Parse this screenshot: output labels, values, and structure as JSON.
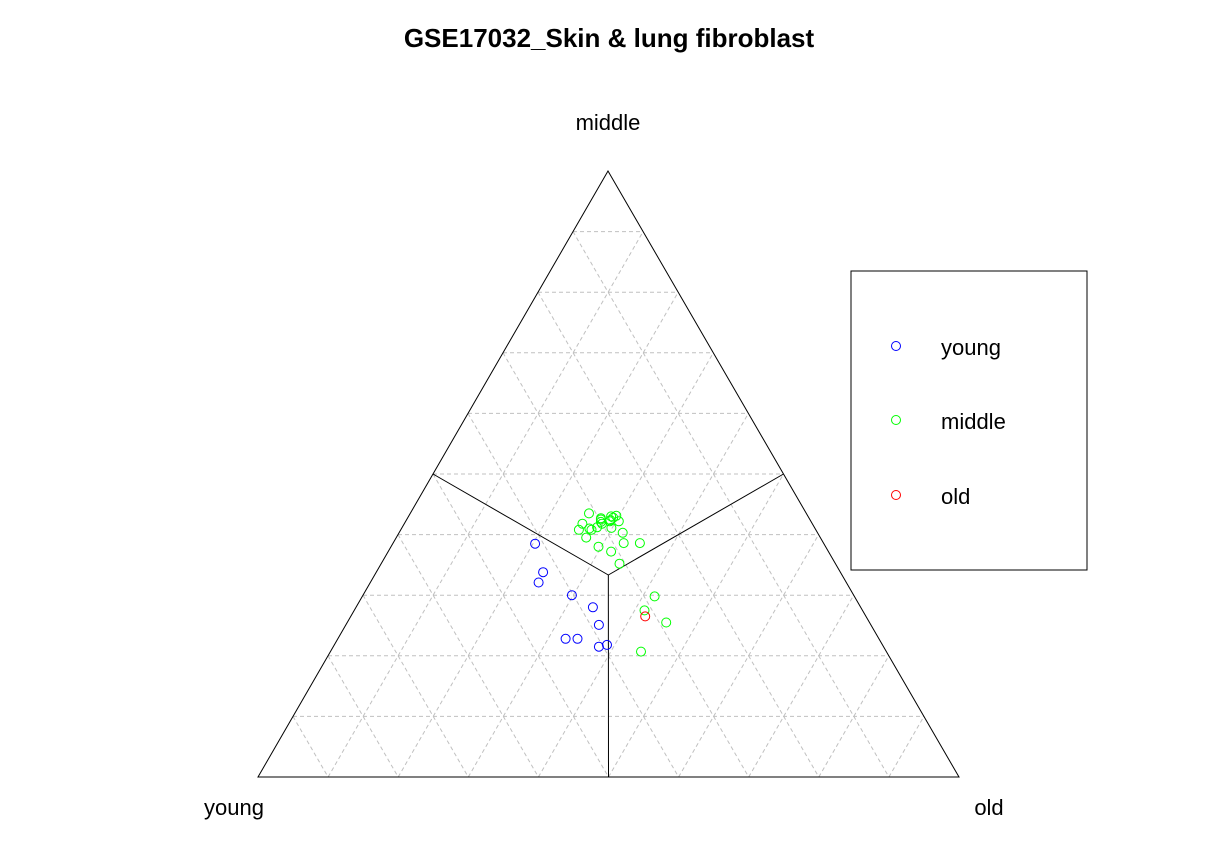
{
  "chart_data": {
    "type": "scatter",
    "subtype": "ternary",
    "title": "GSE17032_Skin & lung fibroblast",
    "vertex_labels": {
      "top": "middle",
      "left": "young",
      "right": "old"
    },
    "grid": true,
    "grid_divisions": 10,
    "legend_position": "right",
    "legend": [
      {
        "label": "young",
        "color": "#0000ff"
      },
      {
        "label": "middle",
        "color": "#00ff00"
      },
      {
        "label": "old",
        "color": "#ff0000"
      }
    ],
    "series": [
      {
        "name": "young",
        "color": "#0000ff",
        "points": [
          {
            "young": 0.412,
            "middle": 0.385,
            "old": 0.203
          },
          {
            "young": 0.402,
            "middle": 0.3,
            "old": 0.298
          },
          {
            "young": 0.424,
            "middle": 0.338,
            "old": 0.238
          },
          {
            "young": 0.439,
            "middle": 0.321,
            "old": 0.24
          },
          {
            "young": 0.382,
            "middle": 0.28,
            "old": 0.338
          },
          {
            "young": 0.388,
            "middle": 0.251,
            "old": 0.361
          },
          {
            "young": 0.43,
            "middle": 0.228,
            "old": 0.342
          },
          {
            "young": 0.447,
            "middle": 0.228,
            "old": 0.325
          },
          {
            "young": 0.406,
            "middle": 0.215,
            "old": 0.379
          },
          {
            "young": 0.393,
            "middle": 0.218,
            "old": 0.389
          }
        ]
      },
      {
        "name": "middle",
        "color": "#00ff00",
        "points": [
          {
            "young": 0.31,
            "middle": 0.435,
            "old": 0.255
          },
          {
            "young": 0.298,
            "middle": 0.425,
            "old": 0.277
          },
          {
            "young": 0.285,
            "middle": 0.424,
            "old": 0.291
          },
          {
            "young": 0.3,
            "middle": 0.418,
            "old": 0.282
          },
          {
            "young": 0.29,
            "middle": 0.411,
            "old": 0.299
          },
          {
            "young": 0.278,
            "middle": 0.403,
            "old": 0.319
          },
          {
            "young": 0.274,
            "middle": 0.422,
            "old": 0.304
          },
          {
            "young": 0.281,
            "middle": 0.43,
            "old": 0.289
          },
          {
            "young": 0.32,
            "middle": 0.408,
            "old": 0.272
          },
          {
            "young": 0.287,
            "middle": 0.422,
            "old": 0.291
          },
          {
            "young": 0.279,
            "middle": 0.428,
            "old": 0.293
          },
          {
            "young": 0.273,
            "middle": 0.431,
            "old": 0.296
          },
          {
            "young": 0.3,
            "middle": 0.421,
            "old": 0.279
          },
          {
            "young": 0.297,
            "middle": 0.427,
            "old": 0.276
          },
          {
            "young": 0.262,
            "middle": 0.386,
            "old": 0.352
          },
          {
            "young": 0.285,
            "middle": 0.386,
            "old": 0.329
          },
          {
            "young": 0.31,
            "middle": 0.372,
            "old": 0.318
          },
          {
            "young": 0.308,
            "middle": 0.352,
            "old": 0.34
          },
          {
            "young": 0.338,
            "middle": 0.408,
            "old": 0.254
          },
          {
            "young": 0.322,
            "middle": 0.41,
            "old": 0.268
          },
          {
            "young": 0.31,
            "middle": 0.412,
            "old": 0.278
          },
          {
            "young": 0.328,
            "middle": 0.418,
            "old": 0.254
          },
          {
            "young": 0.334,
            "middle": 0.395,
            "old": 0.271
          },
          {
            "young": 0.311,
            "middle": 0.275,
            "old": 0.414
          },
          {
            "young": 0.285,
            "middle": 0.298,
            "old": 0.417
          },
          {
            "young": 0.29,
            "middle": 0.255,
            "old": 0.455
          },
          {
            "young": 0.35,
            "middle": 0.207,
            "old": 0.443
          },
          {
            "young": 0.324,
            "middle": 0.38,
            "old": 0.296
          }
        ]
      },
      {
        "name": "old",
        "color": "#ff0000",
        "points": [
          {
            "young": 0.315,
            "middle": 0.265,
            "old": 0.42
          }
        ]
      }
    ]
  }
}
